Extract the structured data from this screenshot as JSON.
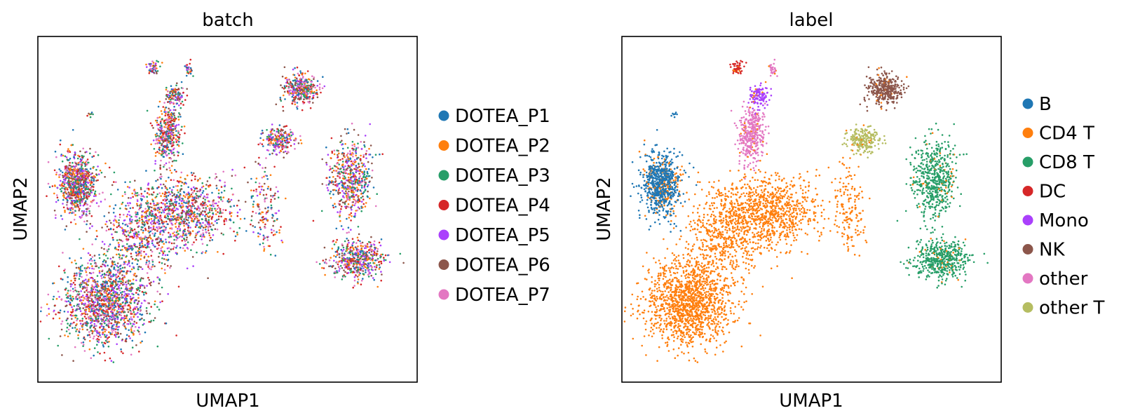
{
  "chart_data": [
    {
      "type": "scatter",
      "title": "batch",
      "xlabel": "UMAP1",
      "ylabel": "UMAP2",
      "xlim": [
        0,
        100
      ],
      "ylim": [
        0,
        100
      ],
      "grid": false,
      "legend_position": "right",
      "series": [
        {
          "name": "DOTEA_P1",
          "color": "#1f77b4"
        },
        {
          "name": "DOTEA_P2",
          "color": "#ff7f0e"
        },
        {
          "name": "DOTEA_P3",
          "color": "#279e68"
        },
        {
          "name": "DOTEA_P4",
          "color": "#d62728"
        },
        {
          "name": "DOTEA_P5",
          "color": "#aa40fc"
        },
        {
          "name": "DOTEA_P6",
          "color": "#8c564b"
        },
        {
          "name": "DOTEA_P7",
          "color": "#e377c2"
        }
      ]
    },
    {
      "type": "scatter",
      "title": "label",
      "xlabel": "UMAP1",
      "ylabel": "UMAP2",
      "xlim": [
        0,
        100
      ],
      "ylim": [
        0,
        100
      ],
      "grid": false,
      "legend_position": "right",
      "series": [
        {
          "name": "B",
          "color": "#1f77b4"
        },
        {
          "name": "CD4 T",
          "color": "#ff7f0e"
        },
        {
          "name": "CD8 T",
          "color": "#279e68"
        },
        {
          "name": "DC",
          "color": "#d62728"
        },
        {
          "name": "Mono",
          "color": "#aa40fc"
        },
        {
          "name": "NK",
          "color": "#8c564b"
        },
        {
          "name": "other",
          "color": "#e377c2"
        },
        {
          "name": "other T",
          "color": "#b5bd61"
        }
      ]
    }
  ]
}
